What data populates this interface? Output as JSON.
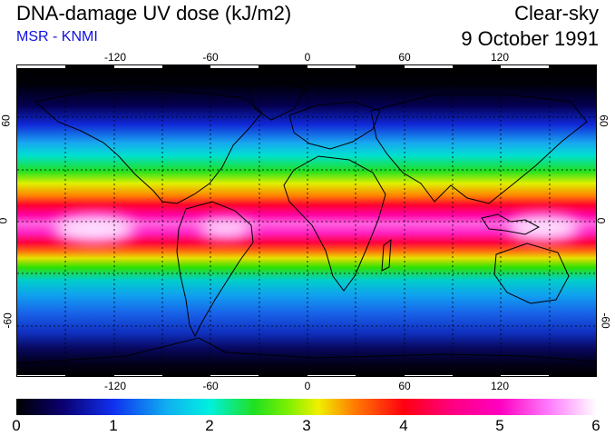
{
  "header": {
    "title": "DNA-damage UV dose (kJ/m2)",
    "source": "MSR - KNMI",
    "condition": "Clear-sky",
    "date": "9 October 1991"
  },
  "map": {
    "longitude_ticks": [
      "-120",
      "-60",
      "0",
      "60",
      "120"
    ],
    "latitude_ticks_left": [
      "60",
      "0",
      "-60"
    ],
    "latitude_ticks_right": [
      "60",
      "0",
      "-60"
    ]
  },
  "colorbar": {
    "labels": [
      "0",
      "1",
      "2",
      "3",
      "4",
      "5",
      "6"
    ],
    "min": 0,
    "max": 6
  }
}
